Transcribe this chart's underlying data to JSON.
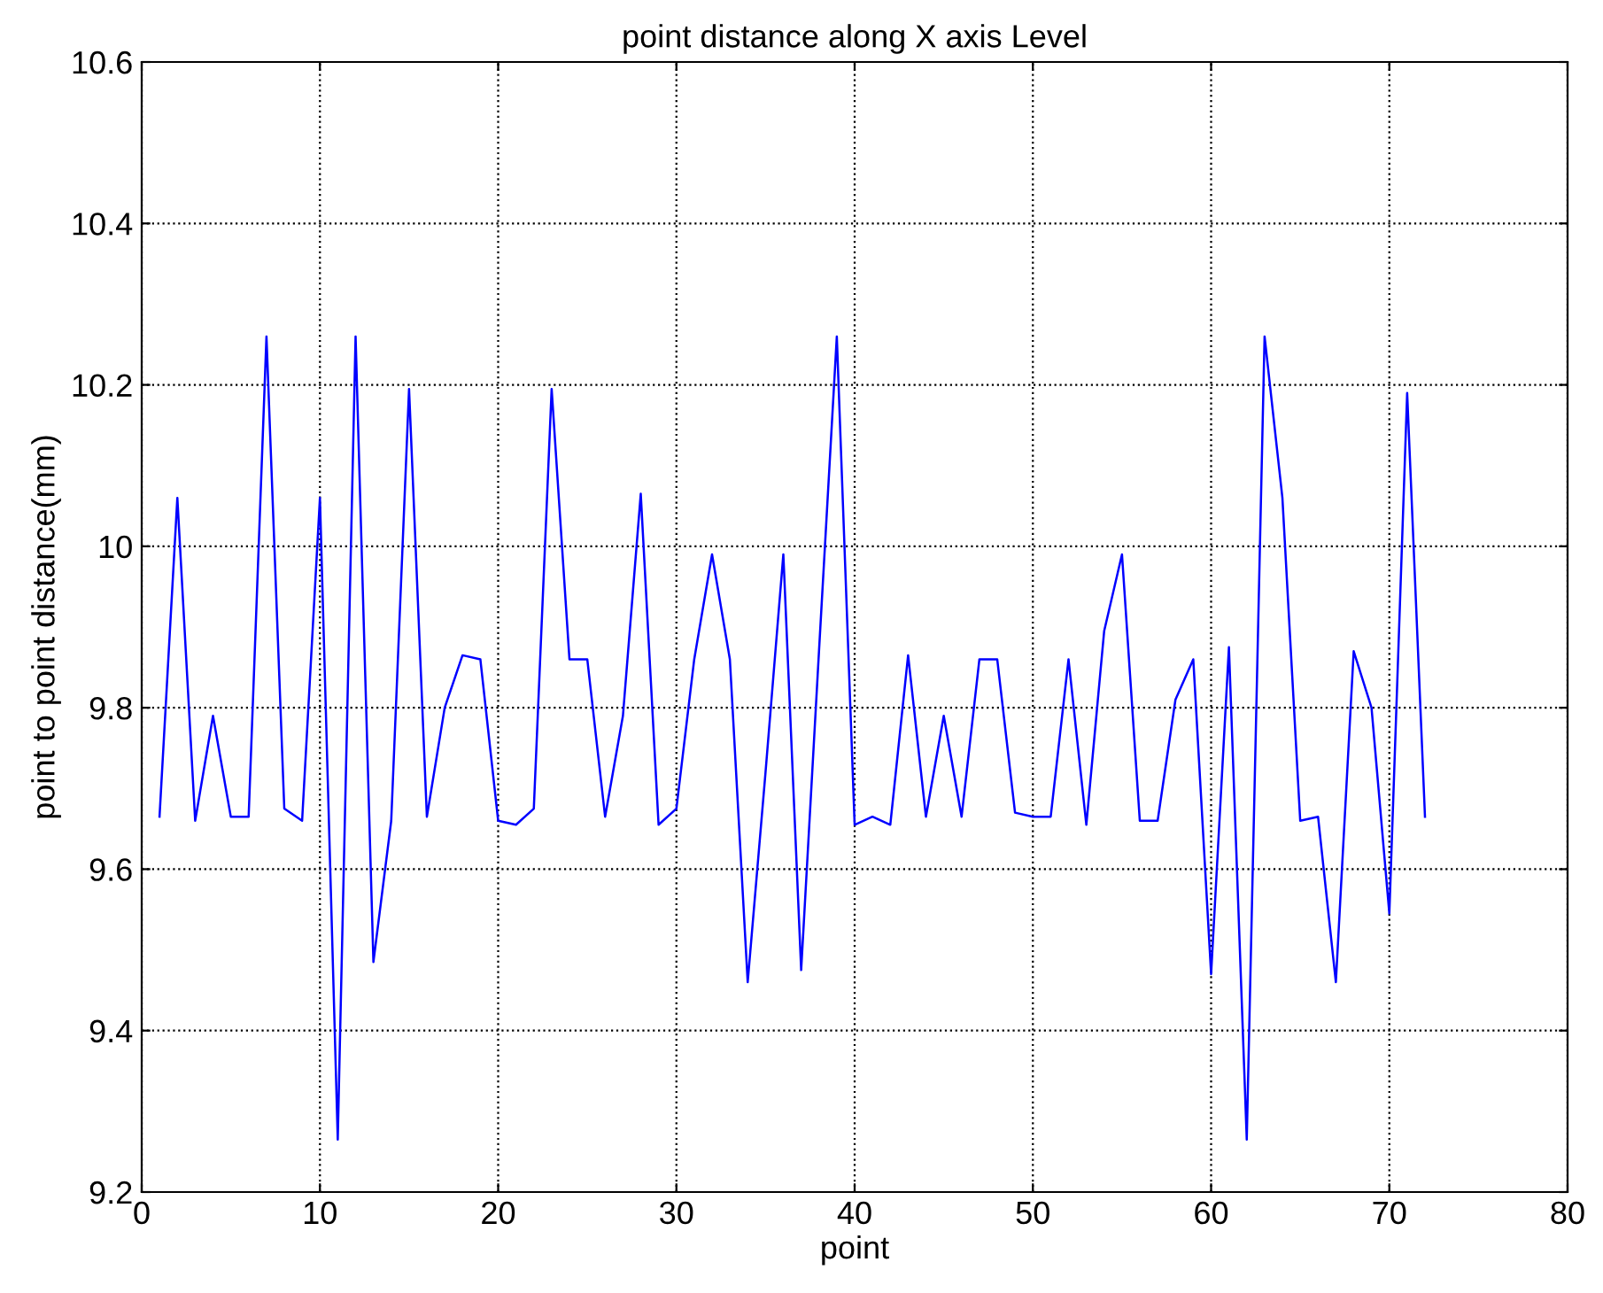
{
  "chart_data": {
    "type": "line",
    "title": "point distance along X axis Level",
    "xlabel": "point",
    "ylabel": "point to point distance(mm)",
    "x": [
      1,
      2,
      3,
      4,
      5,
      6,
      7,
      8,
      9,
      10,
      11,
      12,
      13,
      14,
      15,
      16,
      17,
      18,
      19,
      20,
      21,
      22,
      23,
      24,
      25,
      26,
      27,
      28,
      29,
      30,
      31,
      32,
      33,
      34,
      35,
      36,
      37,
      38,
      39,
      40,
      41,
      42,
      43,
      44,
      45,
      46,
      47,
      48,
      49,
      50,
      51,
      52,
      53,
      54,
      55,
      56,
      57,
      58,
      59,
      60,
      61,
      62,
      63,
      64,
      65,
      66,
      67,
      68,
      69,
      70,
      71,
      72
    ],
    "series": [
      {
        "color": "#0000ff",
        "values": [
          9.665,
          10.06,
          9.66,
          9.79,
          9.665,
          9.665,
          10.26,
          9.675,
          9.66,
          10.06,
          9.265,
          10.26,
          9.485,
          9.66,
          10.195,
          9.665,
          9.8,
          9.865,
          9.86,
          9.66,
          9.655,
          9.675,
          10.195,
          9.86,
          9.86,
          9.665,
          9.79,
          10.065,
          9.655,
          9.675,
          9.86,
          9.99,
          9.86,
          9.46,
          9.72,
          9.99,
          9.475,
          9.87,
          10.26,
          9.655,
          9.665,
          9.655,
          9.865,
          9.665,
          9.79,
          9.665,
          9.86,
          9.86,
          9.67,
          9.665,
          9.665,
          9.86,
          9.655,
          9.895,
          9.99,
          9.66,
          9.66,
          9.81,
          9.86,
          9.47,
          9.875,
          9.265,
          10.26,
          10.06,
          9.66,
          9.665,
          9.46,
          9.87,
          9.8,
          9.545,
          10.19,
          9.665
        ]
      }
    ],
    "xlim": [
      0,
      80
    ],
    "xticks": [
      0,
      10,
      20,
      30,
      40,
      50,
      60,
      70,
      80
    ],
    "ylim": [
      9.2,
      10.6
    ],
    "yticks": [
      9.2,
      9.4,
      9.6,
      9.8,
      10,
      10.2,
      10.4,
      10.6
    ],
    "grid": true,
    "marker": "none",
    "line_style": "solid"
  }
}
